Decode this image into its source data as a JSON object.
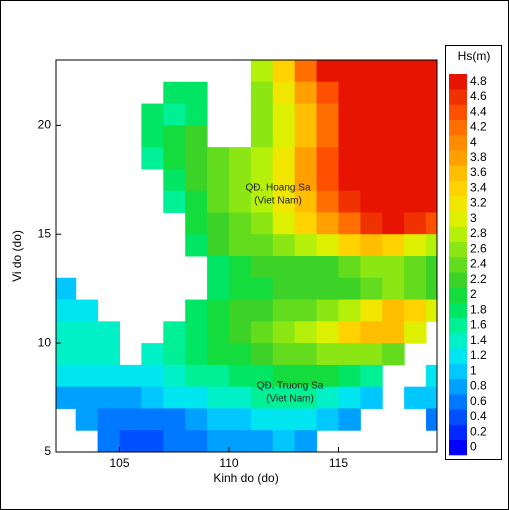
{
  "chart_data": {
    "type": "heatmap",
    "xlabel": "Kinh do (do)",
    "ylabel": "Vi do (do)",
    "annotations": [
      "QĐ. Hoang Sa",
      "(Viet Nam)",
      "QĐ. Truong Sa",
      "(Viet Nam)"
    ],
    "xlim": [
      102.1,
      119.5
    ],
    "ylim": [
      5,
      23
    ],
    "xticks": [
      105,
      110,
      115
    ],
    "yticks": [
      5,
      10,
      15,
      20
    ],
    "x": [
      102,
      103,
      104,
      105,
      106,
      107,
      108,
      109,
      110,
      111,
      112,
      113,
      114,
      115,
      116,
      117,
      118,
      119
    ],
    "y": [
      22,
      21,
      20,
      19,
      18,
      17,
      16,
      15,
      14,
      13,
      12,
      11,
      10,
      9,
      8,
      7,
      6,
      5
    ],
    "z": [
      [
        null,
        null,
        null,
        null,
        null,
        null,
        null,
        null,
        null,
        2.8,
        3.4,
        4.2,
        4.8,
        4.8,
        4.8,
        4.8,
        4.8,
        4.8
      ],
      [
        null,
        null,
        null,
        null,
        null,
        1.8,
        1.8,
        null,
        null,
        2.6,
        3.2,
        3.8,
        4.4,
        4.8,
        4.8,
        4.8,
        4.8,
        4.8
      ],
      [
        null,
        null,
        null,
        null,
        1.8,
        1.6,
        1.8,
        null,
        null,
        2.6,
        3.0,
        3.6,
        4.2,
        4.8,
        4.8,
        4.8,
        4.8,
        4.8
      ],
      [
        null,
        null,
        null,
        null,
        1.8,
        2.0,
        2.2,
        null,
        null,
        2.6,
        3.0,
        3.6,
        4.2,
        4.8,
        4.8,
        4.8,
        4.8,
        4.8
      ],
      [
        null,
        null,
        null,
        null,
        1.6,
        2.0,
        2.2,
        2.4,
        2.6,
        2.8,
        3.2,
        3.8,
        4.4,
        4.8,
        4.8,
        4.8,
        4.8,
        4.8
      ],
      [
        null,
        null,
        null,
        null,
        null,
        1.8,
        2.2,
        2.4,
        2.6,
        2.8,
        3.2,
        3.8,
        4.4,
        4.8,
        4.8,
        4.8,
        4.8,
        4.8
      ],
      [
        null,
        null,
        null,
        null,
        null,
        1.6,
        2.0,
        2.4,
        2.6,
        2.8,
        3.2,
        3.6,
        4.2,
        4.6,
        4.8,
        4.8,
        4.8,
        4.8
      ],
      [
        null,
        null,
        null,
        null,
        null,
        null,
        2.0,
        2.2,
        2.4,
        2.6,
        3.0,
        3.4,
        3.8,
        4.2,
        4.6,
        4.8,
        4.6,
        4.4
      ],
      [
        null,
        null,
        null,
        null,
        null,
        null,
        1.8,
        2.2,
        2.4,
        2.4,
        2.6,
        2.8,
        3.0,
        3.4,
        3.6,
        3.4,
        3.0,
        2.8
      ],
      [
        null,
        null,
        null,
        null,
        null,
        null,
        null,
        1.8,
        2.0,
        2.2,
        2.2,
        2.2,
        2.2,
        2.4,
        2.6,
        2.6,
        2.4,
        2.2
      ],
      [
        1.0,
        null,
        null,
        null,
        null,
        null,
        null,
        1.8,
        2.0,
        2.0,
        2.2,
        2.2,
        2.2,
        2.2,
        2.4,
        2.6,
        2.4,
        2.2
      ],
      [
        1.2,
        1.2,
        null,
        null,
        null,
        null,
        1.8,
        2.0,
        2.2,
        2.2,
        2.4,
        2.4,
        2.6,
        2.8,
        3.2,
        3.6,
        3.4,
        3.0
      ],
      [
        1.4,
        1.4,
        1.4,
        null,
        null,
        1.6,
        1.8,
        2.0,
        2.2,
        2.4,
        2.6,
        2.8,
        3.0,
        3.4,
        3.6,
        3.6,
        3.0,
        null
      ],
      [
        1.4,
        1.4,
        1.4,
        null,
        1.4,
        1.6,
        1.8,
        2.0,
        2.0,
        2.2,
        2.4,
        2.4,
        2.6,
        2.6,
        2.6,
        2.4,
        null,
        null
      ],
      [
        1.2,
        1.2,
        1.2,
        1.2,
        1.2,
        1.4,
        1.6,
        1.6,
        1.8,
        1.8,
        2.0,
        2.0,
        2.0,
        1.8,
        1.6,
        null,
        null,
        1.2
      ],
      [
        0.8,
        0.8,
        0.8,
        0.8,
        1.0,
        1.2,
        1.2,
        1.4,
        1.4,
        1.6,
        1.6,
        1.6,
        1.4,
        1.2,
        1.0,
        null,
        1.0,
        1.0
      ],
      [
        null,
        0.8,
        0.6,
        0.6,
        0.6,
        0.6,
        0.8,
        1.0,
        1.0,
        1.2,
        1.2,
        1.2,
        1.0,
        0.8,
        null,
        null,
        null,
        0.6
      ],
      [
        null,
        null,
        0.6,
        0.4,
        0.4,
        0.6,
        0.6,
        0.8,
        0.8,
        0.8,
        1.0,
        0.8,
        null,
        null,
        null,
        null,
        null,
        null
      ]
    ],
    "colorbar": {
      "title": "Hs(m)",
      "levels": [
        0,
        0.2,
        0.4,
        0.6,
        0.8,
        1,
        1.2,
        1.4,
        1.6,
        1.8,
        2,
        2.2,
        2.4,
        2.6,
        2.8,
        3,
        3.2,
        3.4,
        3.6,
        3.8,
        4,
        4.2,
        4.4,
        4.6,
        4.8
      ],
      "colors": [
        "#0000ff",
        "#0028ff",
        "#0050ff",
        "#0078ff",
        "#00a0ff",
        "#00c8ff",
        "#00e6f0",
        "#00f0c8",
        "#00f096",
        "#00e664",
        "#14dc3c",
        "#3cd228",
        "#64dc1e",
        "#8ce614",
        "#b4f00a",
        "#dcf000",
        "#f0e600",
        "#ffd200",
        "#ffbe00",
        "#ffa000",
        "#ff8c00",
        "#ff6e00",
        "#ff5000",
        "#f03200",
        "#e61400"
      ]
    }
  }
}
